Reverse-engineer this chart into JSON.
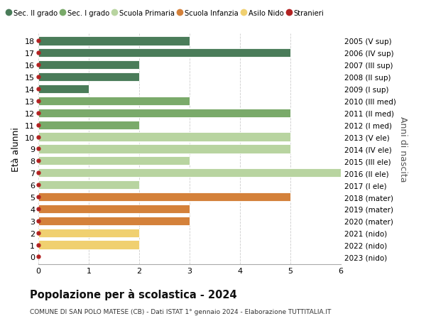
{
  "ages": [
    18,
    17,
    16,
    15,
    14,
    13,
    12,
    11,
    10,
    9,
    8,
    7,
    6,
    5,
    4,
    3,
    2,
    1,
    0
  ],
  "years_labels": [
    "2005 (V sup)",
    "2006 (IV sup)",
    "2007 (III sup)",
    "2008 (II sup)",
    "2009 (I sup)",
    "2010 (III med)",
    "2011 (II med)",
    "2012 (I med)",
    "2013 (V ele)",
    "2014 (IV ele)",
    "2015 (III ele)",
    "2016 (II ele)",
    "2017 (I ele)",
    "2018 (mater)",
    "2019 (mater)",
    "2020 (mater)",
    "2021 (nido)",
    "2022 (nido)",
    "2023 (nido)"
  ],
  "values": [
    3,
    5,
    2,
    2,
    1,
    3,
    5,
    2,
    5,
    5,
    3,
    6,
    2,
    5,
    3,
    3,
    2,
    2,
    0
  ],
  "bar_colors": [
    "#4a7c59",
    "#4a7c59",
    "#4a7c59",
    "#4a7c59",
    "#4a7c59",
    "#7aaa6a",
    "#7aaa6a",
    "#7aaa6a",
    "#b8d4a0",
    "#b8d4a0",
    "#b8d4a0",
    "#b8d4a0",
    "#b8d4a0",
    "#d4813a",
    "#d4813a",
    "#d4813a",
    "#f0d070",
    "#f0d070",
    "#f0d070"
  ],
  "dot_color": "#b22222",
  "title": "Popolazione per à scolastica - 2024",
  "title_bold": true,
  "subtitle": "COMUNE DI SAN POLO MATESE (CB) - Dati ISTAT 1° gennaio 2024 - Elaborazione TUTTITALIA.IT",
  "ylabel": "Età alunni",
  "right_ylabel": "Anni di nascita",
  "xlim": [
    0,
    6
  ],
  "xticks": [
    0,
    1,
    2,
    3,
    4,
    5,
    6
  ],
  "grid_color": "#cccccc",
  "bg_color": "#ffffff",
  "legend_items": [
    {
      "label": "Sec. II grado",
      "color": "#4a7c59",
      "type": "circle"
    },
    {
      "label": "Sec. I grado",
      "color": "#7aaa6a",
      "type": "circle"
    },
    {
      "label": "Scuola Primaria",
      "color": "#b8d4a0",
      "type": "circle"
    },
    {
      "label": "Scuola Infanzia",
      "color": "#d4813a",
      "type": "circle"
    },
    {
      "label": "Asilo Nido",
      "color": "#f0d070",
      "type": "circle"
    },
    {
      "label": "Stranieri",
      "color": "#b22222",
      "type": "circle"
    }
  ]
}
